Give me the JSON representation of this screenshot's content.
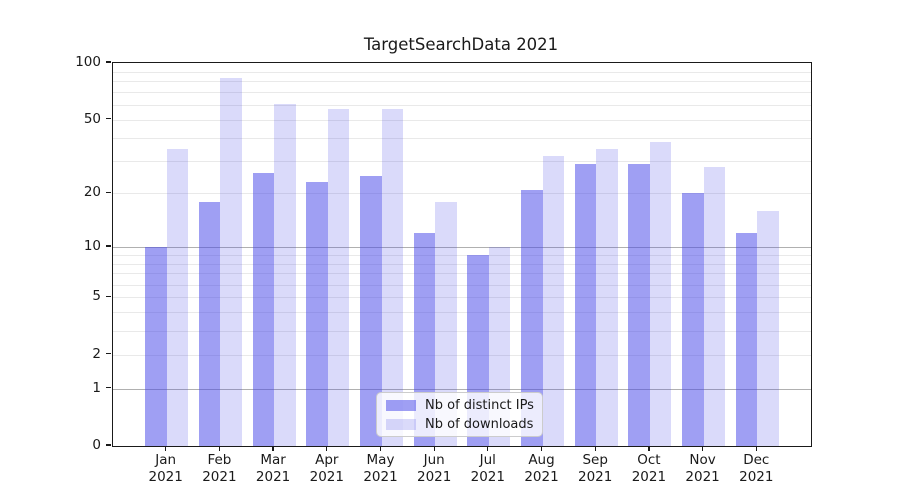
{
  "title": "TargetSearchData 2021",
  "chart_data": {
    "type": "bar",
    "title": "TargetSearchData 2021",
    "categories": [
      "Jan",
      "Feb",
      "Mar",
      "Apr",
      "May",
      "Jun",
      "Jul",
      "Aug",
      "Sep",
      "Oct",
      "Nov",
      "Dec"
    ],
    "x_year_label": "2021",
    "series": [
      {
        "name": "Nb of distinct IPs",
        "color": "rgba(70,70,232,0.52)",
        "values": [
          10,
          18,
          26,
          23,
          25,
          12,
          9,
          21,
          29,
          29,
          20,
          12
        ]
      },
      {
        "name": "Nb of downloads",
        "color": "rgba(70,70,232,0.20)",
        "values": [
          35,
          83,
          61,
          57,
          57,
          18,
          10,
          32,
          35,
          38,
          28,
          16
        ]
      }
    ],
    "yscale": "log1p",
    "ylim": [
      0,
      100
    ],
    "ytick_values": [
      100,
      50,
      20,
      10,
      5,
      2,
      1,
      0
    ],
    "ytick_labels": [
      "100",
      "50",
      "20",
      "10",
      "5",
      "2",
      "1",
      "0"
    ],
    "major_grid_values": [
      1,
      10
    ],
    "minor_grid_values": [
      2,
      3,
      4,
      5,
      6,
      7,
      8,
      9,
      20,
      30,
      40,
      50,
      60,
      70,
      80,
      90
    ],
    "grid": true,
    "legend_position": "lower center",
    "colors": {
      "bar_dark": "rgba(70,70,232,0.52)",
      "bar_light": "rgba(70,70,232,0.20)",
      "major_grid": "#b0b0b0",
      "minor_grid": "#e9e9e9",
      "spine": "#1a1a1a",
      "text": "#1a1a1a",
      "legend_border": "#cccccc"
    }
  }
}
